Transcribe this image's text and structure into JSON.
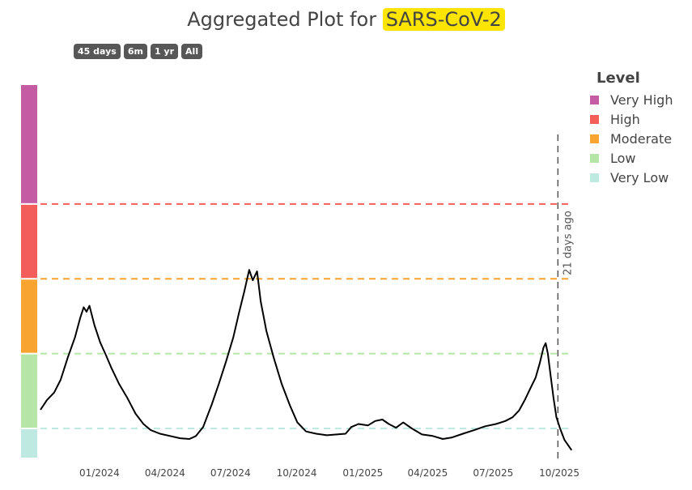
{
  "header": {
    "title_prefix": "Aggregated Plot for",
    "title_highlight": "SARS-CoV-2"
  },
  "range_buttons": [
    {
      "label": "45 days"
    },
    {
      "label": "6m"
    },
    {
      "label": "1 yr"
    },
    {
      "label": "All"
    }
  ],
  "legend": {
    "title": "Level",
    "items": [
      {
        "label": "Very High",
        "color": "#c45ba3"
      },
      {
        "label": "High",
        "color": "#f35e5a"
      },
      {
        "label": "Moderate",
        "color": "#f7a430"
      },
      {
        "label": "Low",
        "color": "#b5e6a7"
      },
      {
        "label": "Very Low",
        "color": "#bde9e1"
      }
    ]
  },
  "chart_data": {
    "type": "line",
    "title": "Aggregated Plot for SARS-CoV-2",
    "xlabel": "",
    "ylabel": "",
    "x_tick_labels": [
      "01/2024",
      "04/2024",
      "07/2024",
      "10/2024",
      "01/2025",
      "04/2025",
      "07/2025",
      "10/2025"
    ],
    "x_range": [
      "2023-10-11",
      "2025-10-20"
    ],
    "y_range": [
      0,
      5
    ],
    "level_bands": [
      {
        "name": "Very Low",
        "from": 0,
        "to": 0.4,
        "color": "#bde9e1"
      },
      {
        "name": "Low",
        "from": 0.4,
        "to": 1.4,
        "color": "#b5e6a7"
      },
      {
        "name": "Moderate",
        "from": 1.4,
        "to": 2.4,
        "color": "#f7a430"
      },
      {
        "name": "High",
        "from": 2.4,
        "to": 3.4,
        "color": "#f35e5a"
      },
      {
        "name": "Very High",
        "from": 3.4,
        "to": 5.0,
        "color": "#c45ba3"
      }
    ],
    "threshold_lines": [
      {
        "level": "Very Low",
        "value": 0.4,
        "color": "#bde9e1"
      },
      {
        "level": "Low",
        "value": 1.4,
        "color": "#b5e6a7"
      },
      {
        "level": "Moderate",
        "value": 2.4,
        "color": "#f7a430"
      },
      {
        "level": "High",
        "value": 3.4,
        "color": "#f35e5a"
      }
    ],
    "marker": {
      "date": "2025-09-29",
      "label": "21 days ago",
      "color": "#555555"
    },
    "series": [
      {
        "color": "#000000",
        "points": [
          [
            "2023-10-11",
            0.65
          ],
          [
            "2023-10-20",
            0.78
          ],
          [
            "2023-10-30",
            0.88
          ],
          [
            "2023-11-08",
            1.05
          ],
          [
            "2023-11-18",
            1.35
          ],
          [
            "2023-11-28",
            1.62
          ],
          [
            "2023-12-05",
            1.87
          ],
          [
            "2023-12-10",
            2.02
          ],
          [
            "2023-12-14",
            1.96
          ],
          [
            "2023-12-18",
            2.04
          ],
          [
            "2023-12-25",
            1.78
          ],
          [
            "2024-01-02",
            1.55
          ],
          [
            "2024-01-10",
            1.38
          ],
          [
            "2024-01-18",
            1.2
          ],
          [
            "2024-01-28",
            1.0
          ],
          [
            "2024-02-08",
            0.82
          ],
          [
            "2024-02-20",
            0.6
          ],
          [
            "2024-03-02",
            0.46
          ],
          [
            "2024-03-12",
            0.38
          ],
          [
            "2024-03-25",
            0.33
          ],
          [
            "2024-04-08",
            0.3
          ],
          [
            "2024-04-22",
            0.27
          ],
          [
            "2024-05-05",
            0.26
          ],
          [
            "2024-05-14",
            0.3
          ],
          [
            "2024-05-24",
            0.42
          ],
          [
            "2024-06-05",
            0.72
          ],
          [
            "2024-06-15",
            1.0
          ],
          [
            "2024-06-25",
            1.3
          ],
          [
            "2024-07-05",
            1.62
          ],
          [
            "2024-07-13",
            1.95
          ],
          [
            "2024-07-20",
            2.22
          ],
          [
            "2024-07-27",
            2.52
          ],
          [
            "2024-08-01",
            2.38
          ],
          [
            "2024-08-07",
            2.5
          ],
          [
            "2024-08-12",
            2.1
          ],
          [
            "2024-08-20",
            1.7
          ],
          [
            "2024-08-30",
            1.35
          ],
          [
            "2024-09-10",
            1.0
          ],
          [
            "2024-09-22",
            0.7
          ],
          [
            "2024-10-02",
            0.48
          ],
          [
            "2024-10-14",
            0.36
          ],
          [
            "2024-10-28",
            0.33
          ],
          [
            "2024-11-12",
            0.31
          ],
          [
            "2024-11-26",
            0.32
          ],
          [
            "2024-12-08",
            0.33
          ],
          [
            "2024-12-16",
            0.42
          ],
          [
            "2024-12-26",
            0.46
          ],
          [
            "2025-01-08",
            0.44
          ],
          [
            "2025-01-18",
            0.5
          ],
          [
            "2025-01-28",
            0.52
          ],
          [
            "2025-02-06",
            0.46
          ],
          [
            "2025-02-16",
            0.41
          ],
          [
            "2025-02-26",
            0.48
          ],
          [
            "2025-03-10",
            0.4
          ],
          [
            "2025-03-24",
            0.32
          ],
          [
            "2025-04-08",
            0.3
          ],
          [
            "2025-04-22",
            0.26
          ],
          [
            "2025-05-05",
            0.28
          ],
          [
            "2025-05-20",
            0.33
          ],
          [
            "2025-06-05",
            0.38
          ],
          [
            "2025-06-20",
            0.43
          ],
          [
            "2025-07-05",
            0.46
          ],
          [
            "2025-07-18",
            0.5
          ],
          [
            "2025-07-28",
            0.55
          ],
          [
            "2025-08-06",
            0.64
          ],
          [
            "2025-08-14",
            0.78
          ],
          [
            "2025-08-22",
            0.94
          ],
          [
            "2025-08-29",
            1.08
          ],
          [
            "2025-09-04",
            1.28
          ],
          [
            "2025-09-09",
            1.48
          ],
          [
            "2025-09-12",
            1.54
          ],
          [
            "2025-09-15",
            1.4
          ],
          [
            "2025-09-19",
            1.1
          ],
          [
            "2025-09-23",
            0.8
          ],
          [
            "2025-09-27",
            0.55
          ],
          [
            "2025-10-02",
            0.4
          ],
          [
            "2025-10-08",
            0.25
          ],
          [
            "2025-10-13",
            0.18
          ],
          [
            "2025-10-18",
            0.11
          ]
        ]
      }
    ]
  }
}
